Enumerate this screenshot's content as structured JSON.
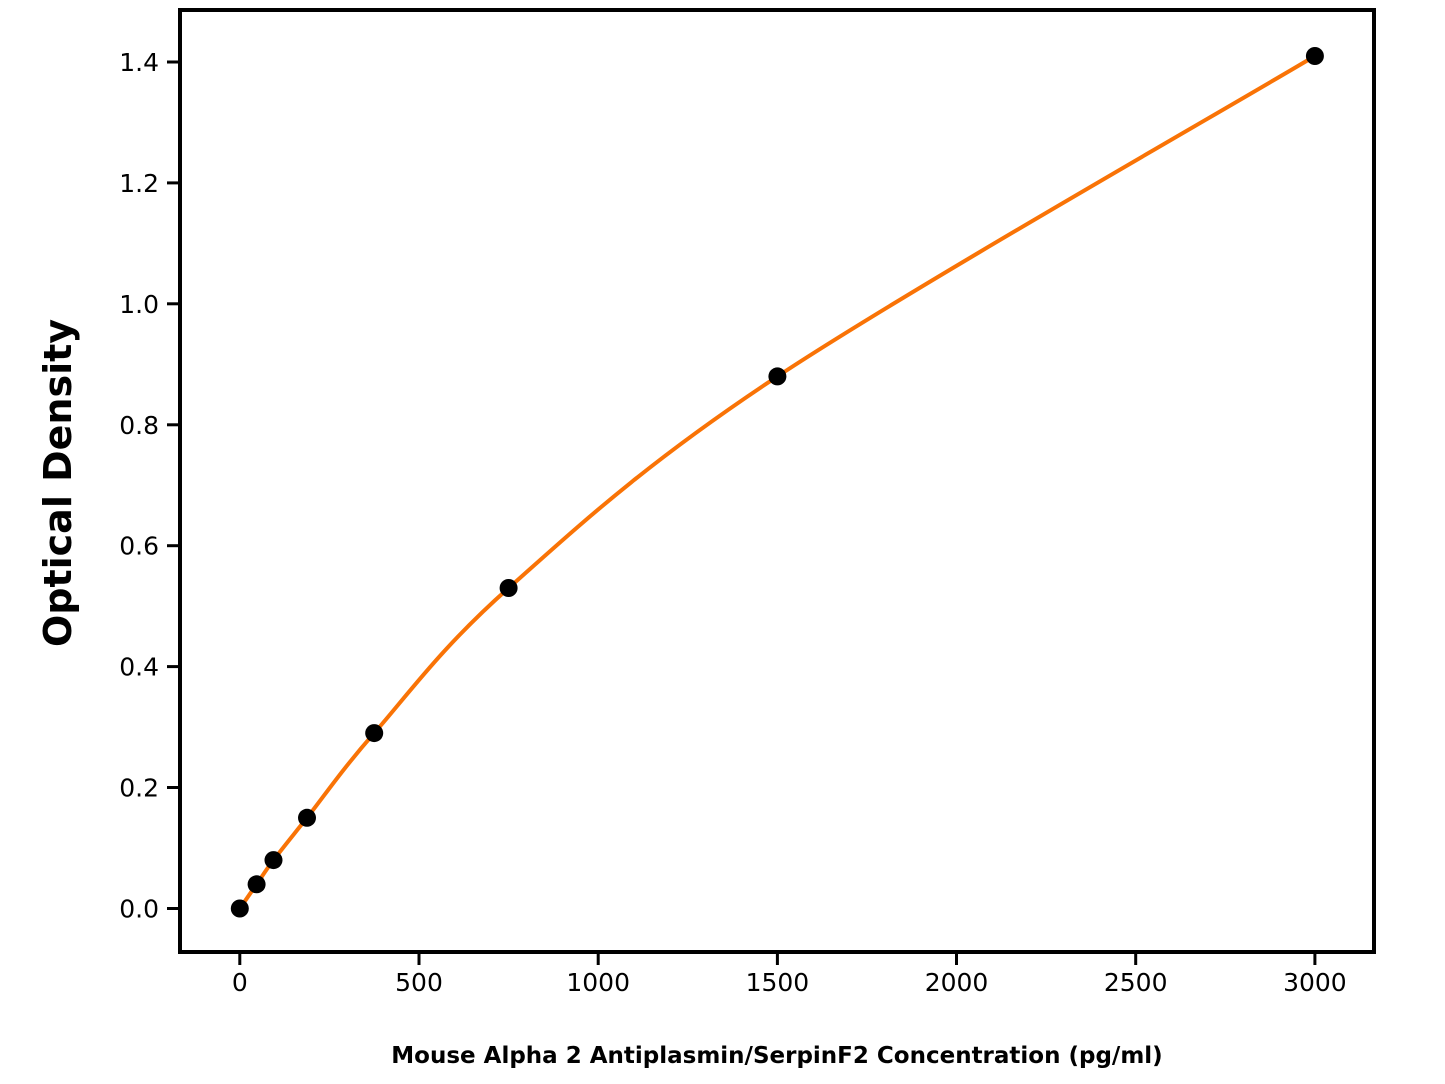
{
  "figure": {
    "background": "#ffffff"
  },
  "chart_data": {
    "type": "line",
    "title": "",
    "xlabel": "Mouse Alpha 2 Antiplasmin/SerpinF2 Concentration (pg/ml)",
    "ylabel": "Optical Density",
    "x": [
      0,
      46.9,
      93.8,
      187.5,
      375,
      750,
      1500,
      3000
    ],
    "y": [
      0.0,
      0.04,
      0.08,
      0.15,
      0.29,
      0.53,
      0.88,
      1.41
    ],
    "xlim": [
      -167,
      3165
    ],
    "ylim": [
      -0.072,
      1.486
    ],
    "x_ticks": [
      0,
      500,
      1000,
      1500,
      2000,
      2500,
      3000
    ],
    "x_tick_labels": [
      "0",
      "500",
      "1000",
      "1500",
      "2000",
      "2500",
      "3000"
    ],
    "y_ticks": [
      0.0,
      0.2,
      0.4,
      0.6,
      0.8,
      1.0,
      1.2,
      1.4
    ],
    "y_tick_labels": [
      "0.0",
      "0.2",
      "0.4",
      "0.6",
      "0.8",
      "1.0",
      "1.2",
      "1.4"
    ],
    "grid": false,
    "legend": "none",
    "line_color": "#F97306",
    "marker_color": "#000000",
    "axis_color": "#000000"
  }
}
